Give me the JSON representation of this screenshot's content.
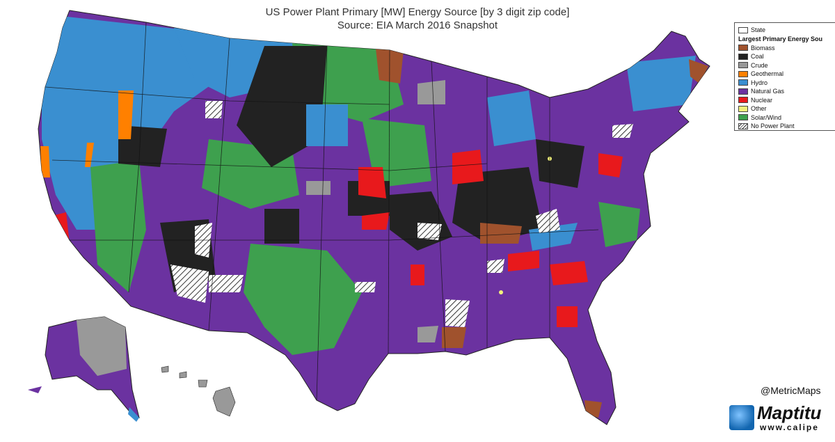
{
  "title": {
    "line1": "US Power Plant Primary [MW] Energy Source [by 3 digit zip code]",
    "line2": "Source:  EIA March 2016 Snapshot"
  },
  "legend": {
    "state_label": "State",
    "heading": "Largest Primary Energy Sou",
    "items": [
      {
        "label": "Biomass",
        "color": "#a0522d"
      },
      {
        "label": "Coal",
        "color": "#222222"
      },
      {
        "label": "Crude",
        "color": "#999999"
      },
      {
        "label": "Geothermal",
        "color": "#ff8000"
      },
      {
        "label": "Hydro",
        "color": "#3a8fd0"
      },
      {
        "label": "Natural Gas",
        "color": "#6b32a0"
      },
      {
        "label": "Nuclear",
        "color": "#e8191c"
      },
      {
        "label": "Other",
        "color": "#f2f27a"
      },
      {
        "label": "Solar/Wind",
        "color": "#3ea04e"
      }
    ],
    "no_plant_label": "No Power Plant"
  },
  "credit": "@MetricMaps",
  "logo": {
    "word": "Maptitu",
    "url": "www.calipe"
  }
}
